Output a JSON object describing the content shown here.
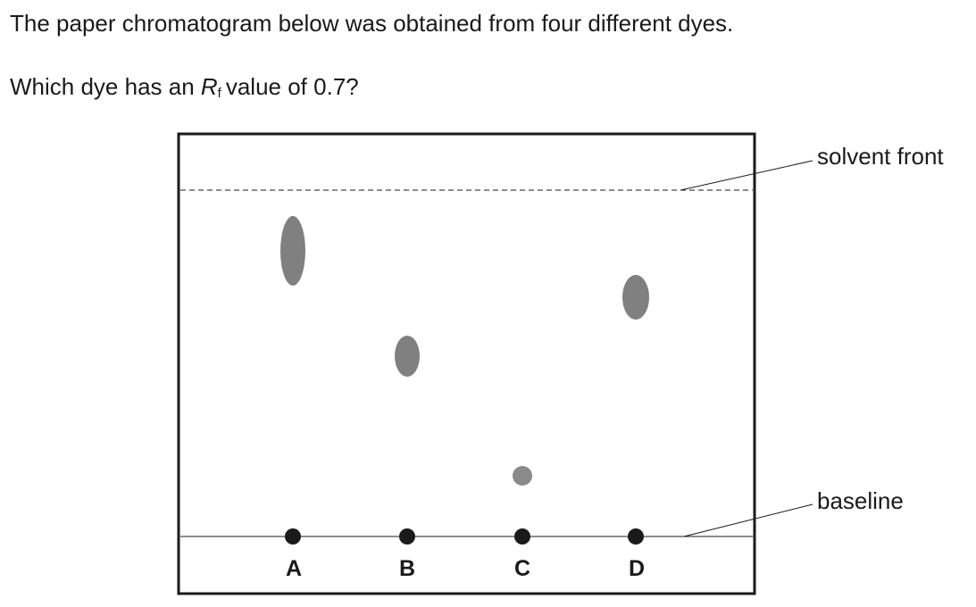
{
  "question": {
    "intro": "The paper chromatogram below was obtained from four different dyes.",
    "prompt_before": "Which dye has an ",
    "rf_symbol": "R",
    "rf_subscript": "f",
    "prompt_after": "value of 0.7?"
  },
  "chromatogram": {
    "labels": {
      "solvent_front": "solvent front",
      "baseline": "baseline"
    },
    "lanes": [
      {
        "letter": "A"
      },
      {
        "letter": "B"
      },
      {
        "letter": "C"
      },
      {
        "letter": "D"
      }
    ],
    "colors": {
      "spot": "#808080",
      "baseline_dot": "#1a1a1a",
      "frame": "#1a1a1a"
    }
  }
}
